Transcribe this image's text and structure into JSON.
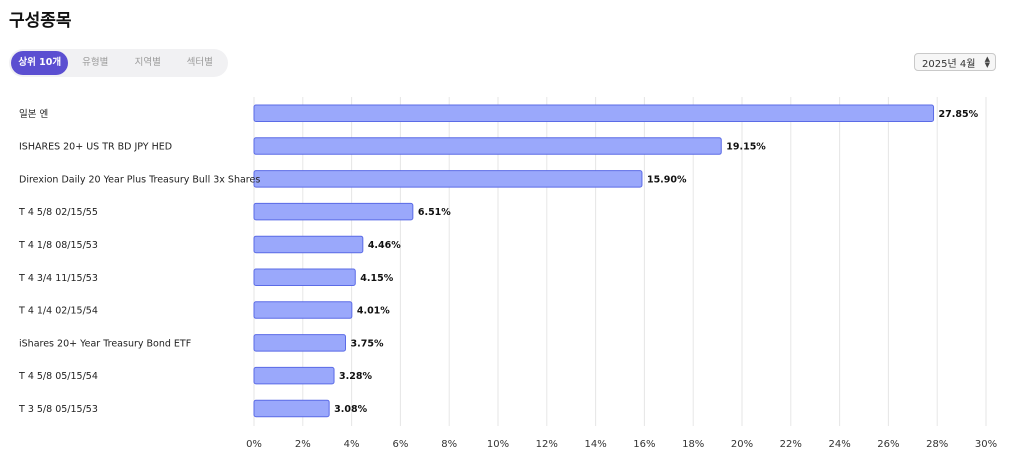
{
  "page": {
    "title": "구성종목",
    "tabs": [
      {
        "label": "상위 10개",
        "active": true
      },
      {
        "label": "유형별",
        "active": false
      },
      {
        "label": "지역별",
        "active": false
      },
      {
        "label": "섹터별",
        "active": false
      }
    ],
    "month_select": {
      "value": "2025년 4월",
      "icon": "updown-arrows-icon"
    }
  },
  "colors": {
    "bar_fill": "#9aa8fb",
    "bar_stroke": "#5b6be6",
    "grid": "#e6e6e6",
    "tab_active_bg": "#5b4fd1"
  },
  "chart_data": {
    "type": "bar",
    "orientation": "horizontal",
    "categories": [
      "일본 엔",
      "ISHARES 20+ US TR BD JPY HED",
      "Direxion Daily 20 Year Plus Treasury Bull 3x Shares",
      "T 4 5/8 02/15/55",
      "T 4 1/8 08/15/53",
      "T 4 3/4 11/15/53",
      "T 4 1/4 02/15/54",
      "iShares 20+ Year Treasury Bond ETF",
      "T 4 5/8 05/15/54",
      "T 3 5/8 05/15/53"
    ],
    "values": [
      27.85,
      19.15,
      15.9,
      6.51,
      4.46,
      4.15,
      4.01,
      3.75,
      3.28,
      3.08
    ],
    "value_labels": [
      "27.85%",
      "19.15%",
      "15.90%",
      "6.51%",
      "4.46%",
      "4.15%",
      "4.01%",
      "3.75%",
      "3.28%",
      "3.08%"
    ],
    "xlim": [
      0,
      30
    ],
    "x_ticks": [
      0,
      2,
      4,
      6,
      8,
      10,
      12,
      14,
      16,
      18,
      20,
      22,
      24,
      26,
      28,
      30
    ],
    "x_tick_labels": [
      "0%",
      "2%",
      "4%",
      "6%",
      "8%",
      "10%",
      "12%",
      "14%",
      "16%",
      "18%",
      "20%",
      "22%",
      "24%",
      "26%",
      "28%",
      "30%"
    ],
    "grid": true,
    "legend": false
  }
}
